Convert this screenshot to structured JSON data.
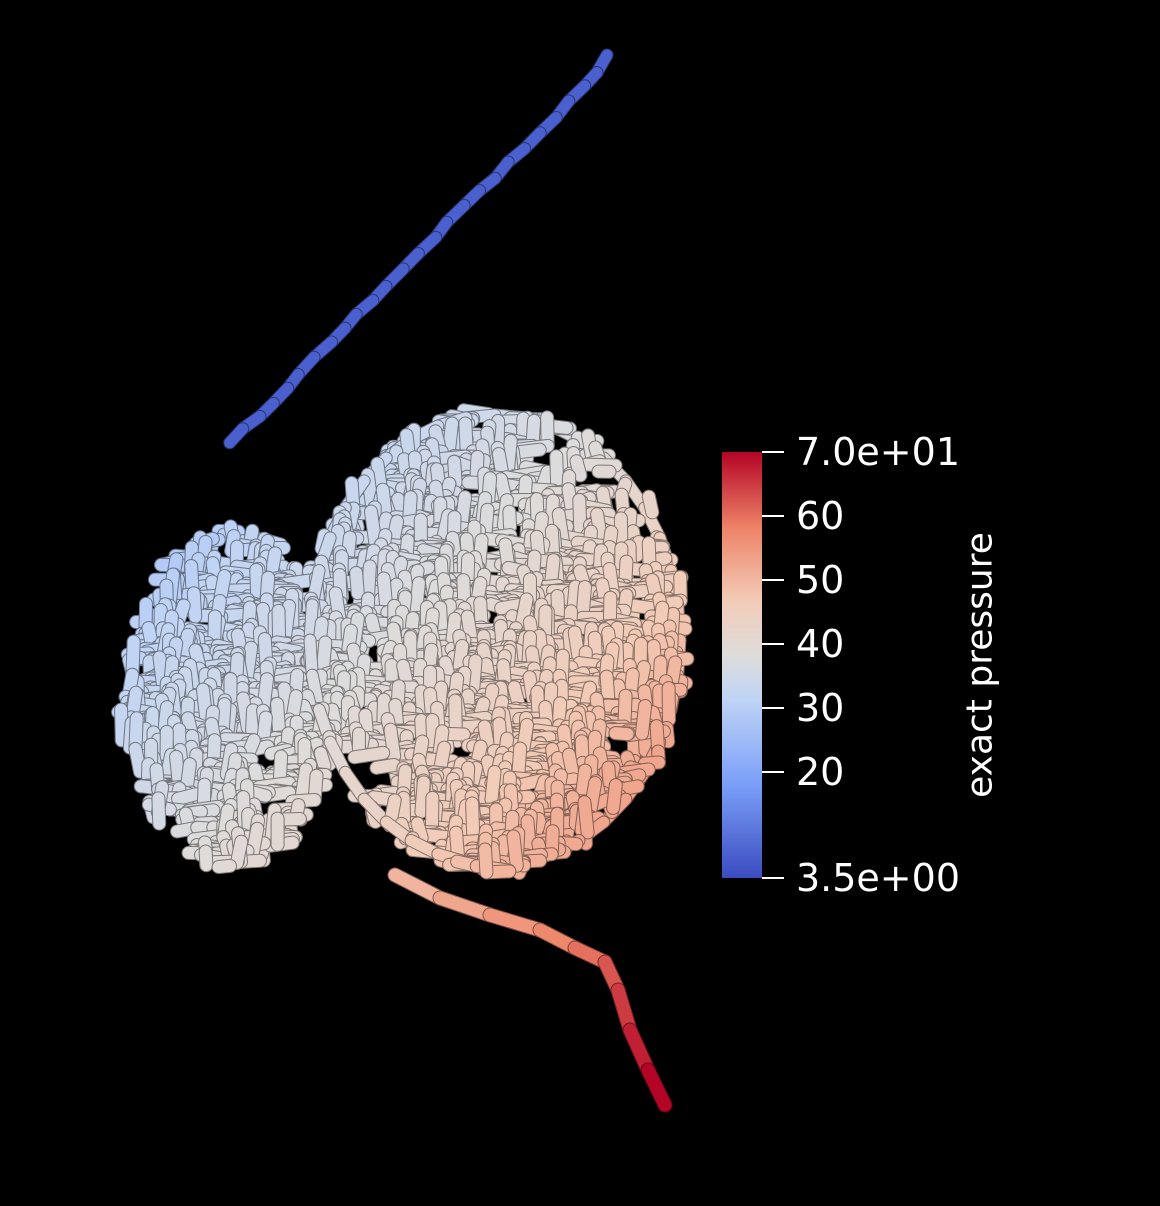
{
  "colorbar": {
    "title": "exact pressure",
    "ticks": [
      {
        "value": 70,
        "label": "7.0e+01"
      },
      {
        "value": 60,
        "label": "60"
      },
      {
        "value": 50,
        "label": "50"
      },
      {
        "value": 40,
        "label": "40"
      },
      {
        "value": 30,
        "label": "30"
      },
      {
        "value": 20,
        "label": "20"
      },
      {
        "value": 3.5,
        "label": "3.5e+00"
      }
    ],
    "range": [
      3.5,
      70
    ],
    "colormap": [
      "#3b4cc0",
      "#7b9ff9",
      "#c0d4f5",
      "#dddcdc",
      "#f2cbb7",
      "#ee8468",
      "#b40426"
    ]
  },
  "background": "#000000"
}
